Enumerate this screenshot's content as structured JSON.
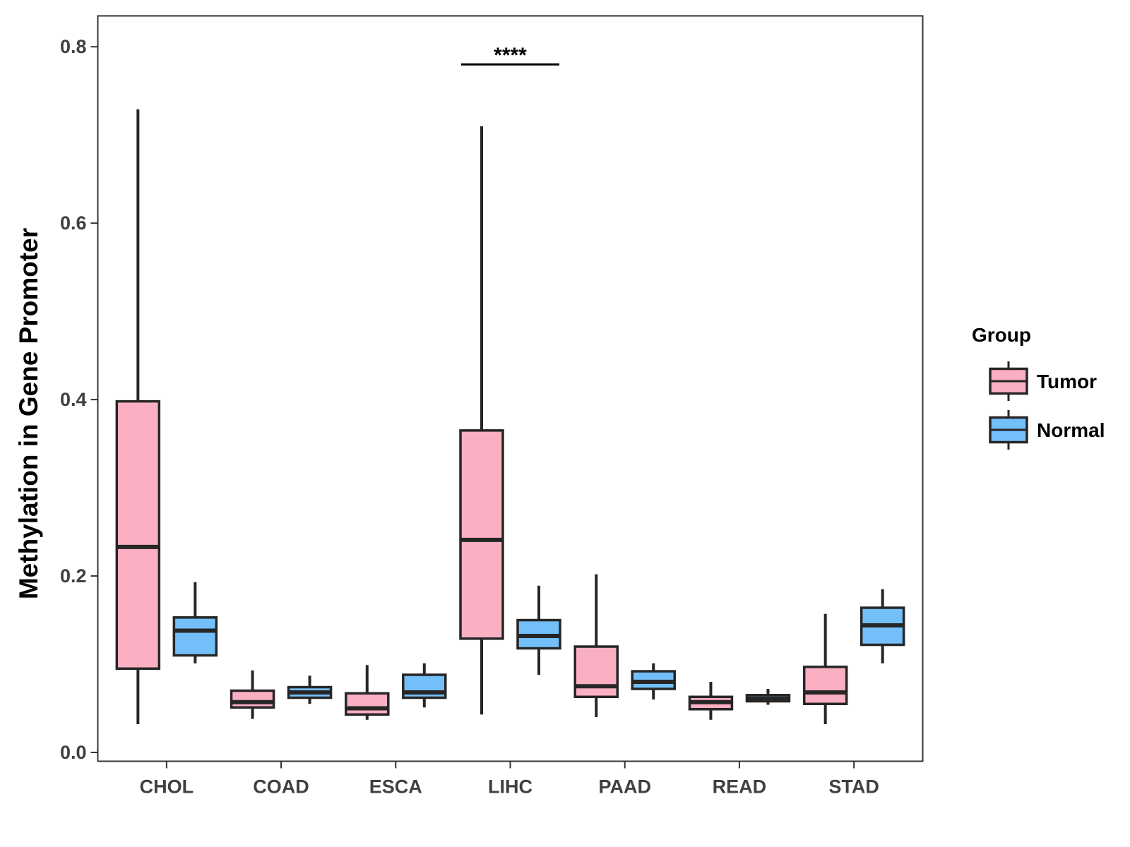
{
  "chart_data": {
    "type": "boxplot",
    "title": "",
    "xlabel": "",
    "ylabel": "Methylation in Gene Promoter",
    "ylim": [
      -0.01,
      0.835
    ],
    "yticks": [
      0.0,
      0.2,
      0.4,
      0.6,
      0.8
    ],
    "ytick_labels": [
      "0.0",
      "0.2",
      "0.4",
      "0.6",
      "0.8"
    ],
    "categories": [
      "CHOL",
      "COAD",
      "ESCA",
      "LIHC",
      "PAAD",
      "READ",
      "STAD"
    ],
    "series": [
      {
        "name": "Tumor",
        "color": "#FBAFC2",
        "boxes": [
          {
            "min": 0.032,
            "q1": 0.095,
            "median": 0.233,
            "q3": 0.398,
            "max": 0.729
          },
          {
            "min": 0.038,
            "q1": 0.051,
            "median": 0.057,
            "q3": 0.07,
            "max": 0.093
          },
          {
            "min": 0.037,
            "q1": 0.043,
            "median": 0.05,
            "q3": 0.067,
            "max": 0.099
          },
          {
            "min": 0.043,
            "q1": 0.129,
            "median": 0.241,
            "q3": 0.365,
            "max": 0.71
          },
          {
            "min": 0.04,
            "q1": 0.063,
            "median": 0.075,
            "q3": 0.12,
            "max": 0.202
          },
          {
            "min": 0.037,
            "q1": 0.049,
            "median": 0.057,
            "q3": 0.063,
            "max": 0.08
          },
          {
            "min": 0.032,
            "q1": 0.055,
            "median": 0.068,
            "q3": 0.097,
            "max": 0.157
          }
        ]
      },
      {
        "name": "Normal",
        "color": "#73BFF9",
        "boxes": [
          {
            "min": 0.101,
            "q1": 0.11,
            "median": 0.138,
            "q3": 0.153,
            "max": 0.193
          },
          {
            "min": 0.055,
            "q1": 0.062,
            "median": 0.068,
            "q3": 0.074,
            "max": 0.087
          },
          {
            "min": 0.051,
            "q1": 0.062,
            "median": 0.068,
            "q3": 0.088,
            "max": 0.101
          },
          {
            "min": 0.088,
            "q1": 0.118,
            "median": 0.132,
            "q3": 0.15,
            "max": 0.189
          },
          {
            "min": 0.06,
            "q1": 0.072,
            "median": 0.08,
            "q3": 0.092,
            "max": 0.101
          },
          {
            "min": 0.054,
            "q1": 0.058,
            "median": 0.061,
            "q3": 0.065,
            "max": 0.072
          },
          {
            "min": 0.101,
            "q1": 0.122,
            "median": 0.144,
            "q3": 0.164,
            "max": 0.185
          }
        ]
      }
    ],
    "annotations": [
      {
        "category": "LIHC",
        "label": "****",
        "y": 0.78
      }
    ],
    "legend": {
      "title": "Group",
      "position": "right",
      "items": [
        "Tumor",
        "Normal"
      ]
    },
    "grid": false
  }
}
